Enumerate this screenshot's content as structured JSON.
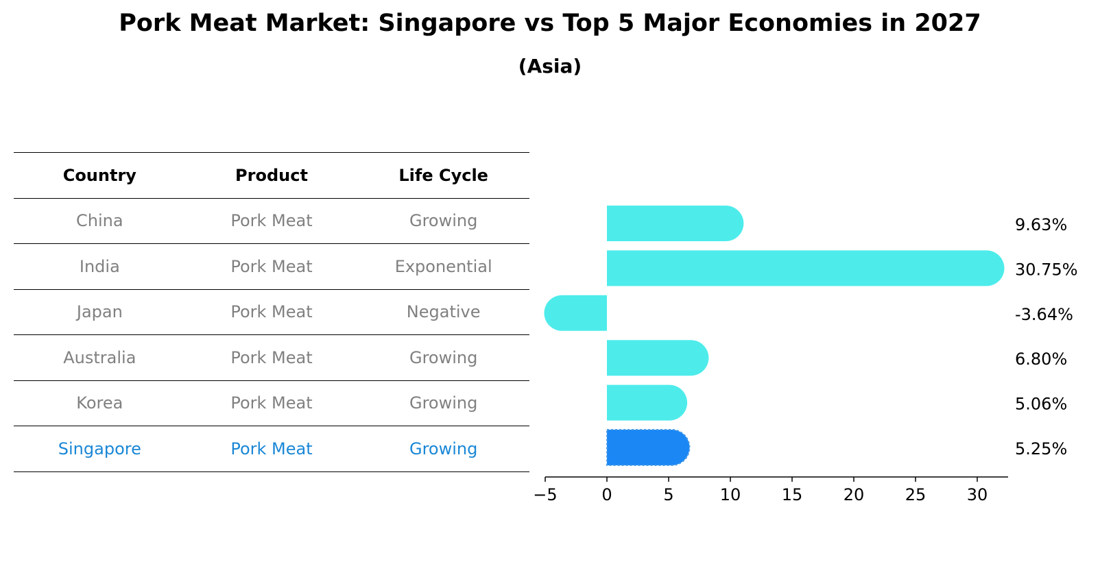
{
  "title": "Pork Meat Market: Singapore vs Top 5 Major Economies in 2027",
  "subtitle": "(Asia)",
  "table": {
    "headers": [
      "Country",
      "Product",
      "Life Cycle"
    ],
    "rows": [
      {
        "country": "China",
        "product": "Pork Meat",
        "life_cycle": "Growing"
      },
      {
        "country": "India",
        "product": "Pork Meat",
        "life_cycle": "Exponential"
      },
      {
        "country": "Japan",
        "product": "Pork Meat",
        "life_cycle": "Negative"
      },
      {
        "country": "Australia",
        "product": "Pork Meat",
        "life_cycle": "Growing"
      },
      {
        "country": "Korea",
        "product": "Pork Meat",
        "life_cycle": "Growing"
      },
      {
        "country": "Singapore",
        "product": "Pork Meat",
        "life_cycle": "Growing"
      }
    ]
  },
  "colors": {
    "bar": "#4deceb",
    "highlight_bar": "#1a87f5",
    "highlight_text": "#1a87d6",
    "muted_text": "#808080"
  },
  "chart_data": {
    "type": "bar",
    "orientation": "horizontal",
    "categories": [
      "China",
      "India",
      "Japan",
      "Australia",
      "Korea",
      "Singapore"
    ],
    "values": [
      9.63,
      30.75,
      -3.64,
      6.8,
      5.06,
      5.25
    ],
    "value_labels": [
      "9.63%",
      "30.75%",
      "-3.64%",
      "6.80%",
      "5.06%",
      "5.25%"
    ],
    "highlight": "Singapore",
    "xlim": [
      -5,
      32.5
    ],
    "xticks": [
      -5,
      0,
      5,
      10,
      15,
      20,
      25,
      30
    ],
    "xtick_labels": [
      "−5",
      "0",
      "5",
      "10",
      "15",
      "20",
      "25",
      "30"
    ],
    "xlabel": "",
    "ylabel": "",
    "grid": false
  }
}
